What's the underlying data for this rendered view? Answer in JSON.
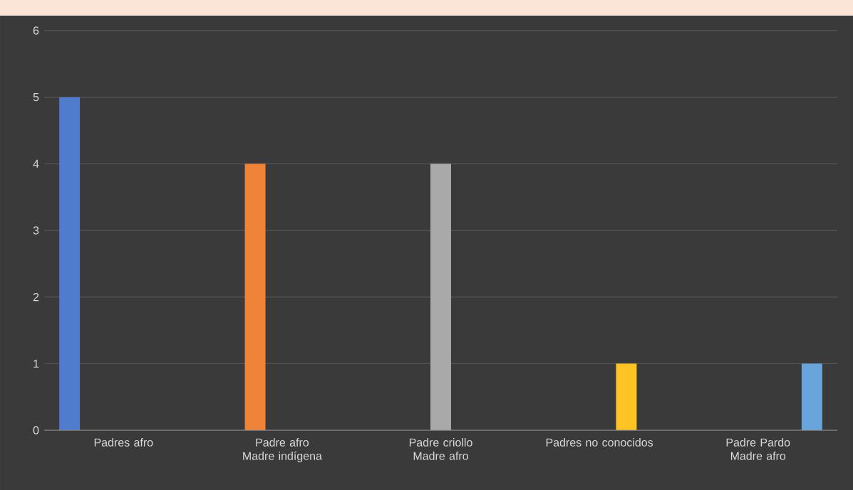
{
  "chart_data": {
    "type": "bar",
    "categories": [
      "Padres afro",
      "Padre afro Madre indígena",
      "Padre criollo Madre afro",
      "Padres no conocidos",
      "Padre Pardo Madre afro"
    ],
    "series": [
      {
        "color": "#4f7ccc",
        "values": [
          5,
          null,
          null,
          null,
          null
        ]
      },
      {
        "color": "#ef8438",
        "values": [
          null,
          4,
          null,
          null,
          null
        ]
      },
      {
        "color": "#a9a9a9",
        "values": [
          null,
          null,
          4,
          null,
          null
        ]
      },
      {
        "color": "#fec426",
        "values": [
          null,
          null,
          null,
          1,
          null
        ]
      },
      {
        "color": "#69a4da",
        "values": [
          null,
          null,
          null,
          null,
          1
        ]
      }
    ],
    "ylim": [
      0,
      6
    ],
    "yticks": [
      0,
      1,
      2,
      3,
      4,
      5,
      6
    ],
    "grid": "y"
  }
}
